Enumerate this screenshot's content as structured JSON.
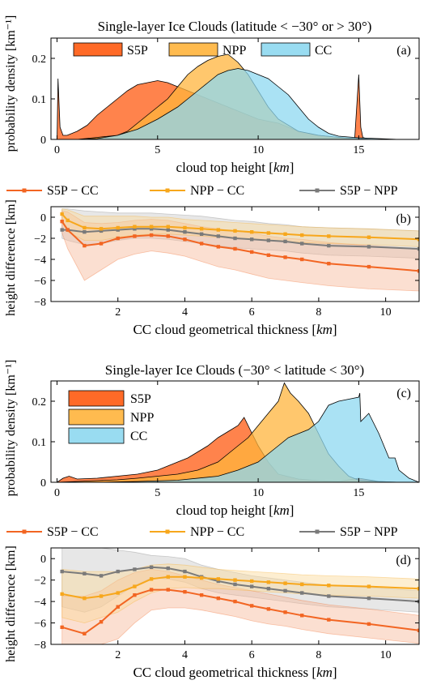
{
  "figure": {
    "ylabel_a": "probability density [km⁻¹]",
    "ylabel_b": "height difference [km]",
    "ylabel_c": "probability density [km⁻¹]",
    "ylabel_d": "height difference [km]"
  },
  "colors": {
    "S5P": "#ff5a10",
    "NPP": "#ffb43c",
    "CC": "#8ed8f0",
    "diff_s5p_cc": "#f26522",
    "diff_npp_cc": "#f7a71c",
    "diff_s5p_npp": "#7a7a7a"
  },
  "chart_data": [
    {
      "id": "a",
      "type": "area",
      "panel_label": "(a)",
      "title": "Single-layer Ice Clouds (latitude < −30° or > 30°)",
      "xlabel": "cloud top height [km]",
      "ylabel": "probability density [km⁻¹]",
      "xlim": [
        -0.3,
        18
      ],
      "ylim": [
        0,
        0.25
      ],
      "xticks": [
        0,
        5,
        10,
        15
      ],
      "yticks": [
        0,
        0.1,
        0.2
      ],
      "legend": "top",
      "grid": false,
      "series": [
        {
          "name": "S5P",
          "x": [
            0,
            0.05,
            0.15,
            0.3,
            0.5,
            1,
            1.5,
            2,
            2.5,
            3,
            3.5,
            4,
            4.5,
            5,
            5.5,
            6,
            6.5,
            7,
            7.5,
            8,
            8.5,
            9,
            9.5,
            10,
            10.5,
            11,
            11.5,
            12,
            12.5,
            13,
            14,
            14.8,
            15,
            15.1,
            15.2,
            15.5,
            16,
            18
          ],
          "y": [
            0,
            0.15,
            0.03,
            0.01,
            0.01,
            0.02,
            0.035,
            0.06,
            0.08,
            0.1,
            0.12,
            0.135,
            0.14,
            0.145,
            0.14,
            0.13,
            0.12,
            0.11,
            0.1,
            0.09,
            0.08,
            0.07,
            0.06,
            0.05,
            0.045,
            0.04,
            0.03,
            0.02,
            0.015,
            0.01,
            0.005,
            0.002,
            0.16,
            0.03,
            0.005,
            0,
            0,
            0
          ]
        },
        {
          "name": "NPP",
          "x": [
            0,
            0.5,
            1,
            2,
            3,
            3.5,
            4,
            4.5,
            5,
            5.5,
            6,
            6.5,
            7,
            7.5,
            8,
            8.5,
            9,
            9.5,
            10,
            10.5,
            11,
            12,
            13,
            14,
            15,
            16,
            18
          ],
          "y": [
            0,
            0,
            0,
            0.005,
            0.01,
            0.02,
            0.04,
            0.06,
            0.08,
            0.1,
            0.13,
            0.16,
            0.18,
            0.195,
            0.205,
            0.21,
            0.19,
            0.16,
            0.12,
            0.08,
            0.05,
            0.02,
            0.01,
            0.005,
            0.002,
            0,
            0
          ]
        },
        {
          "name": "CC",
          "x": [
            0,
            0.5,
            1,
            2,
            3,
            4,
            5,
            6,
            6.5,
            7,
            7.5,
            8,
            8.5,
            9,
            9.5,
            10,
            10.5,
            11,
            11.5,
            12,
            12.5,
            13,
            13.5,
            14,
            15,
            16,
            17,
            18
          ],
          "y": [
            0,
            0,
            0,
            0.002,
            0.01,
            0.025,
            0.05,
            0.08,
            0.1,
            0.12,
            0.14,
            0.16,
            0.17,
            0.175,
            0.17,
            0.16,
            0.15,
            0.13,
            0.11,
            0.08,
            0.05,
            0.03,
            0.015,
            0.008,
            0.004,
            0.002,
            0,
            0
          ]
        }
      ]
    },
    {
      "id": "b",
      "type": "line",
      "panel_label": "(b)",
      "xlabel": "CC cloud geometrical thickness [km]",
      "ylabel": "height difference [km]",
      "xlim": [
        0,
        11
      ],
      "ylim": [
        -8,
        1
      ],
      "xticks": [
        2,
        4,
        6,
        8,
        10
      ],
      "yticks": [
        0,
        -2,
        -4,
        -6,
        -8
      ],
      "legend": "top",
      "grid": false,
      "x": [
        0.33,
        0.5,
        1,
        1.5,
        2,
        2.5,
        3,
        3.5,
        4,
        4.5,
        5,
        5.5,
        6,
        6.5,
        7,
        7.5,
        8.3,
        9.5,
        11
      ],
      "series": [
        {
          "name": "S5P − CC",
          "values": [
            -0.4,
            -1.2,
            -2.7,
            -2.5,
            -2.0,
            -1.8,
            -1.7,
            -1.8,
            -2.1,
            -2.5,
            -2.8,
            -3.0,
            -3.3,
            -3.6,
            -3.8,
            -4.0,
            -4.4,
            -4.7,
            -5.1
          ],
          "lower": [
            -1.5,
            -3.0,
            -6.0,
            -5.0,
            -4.0,
            -3.5,
            -3.2,
            -3.4,
            -3.7,
            -4.2,
            -4.7,
            -5.0,
            -5.4,
            -5.8,
            -6.0,
            -6.2,
            -6.5,
            -6.8,
            -7.0
          ],
          "upper": [
            0.6,
            0.5,
            -0.5,
            -0.6,
            -0.5,
            -0.3,
            -0.2,
            -0.3,
            -0.6,
            -0.9,
            -1.1,
            -1.3,
            -1.5,
            -1.8,
            -2.0,
            -2.1,
            -2.4,
            -2.7,
            -3.0
          ]
        },
        {
          "name": "NPP − CC",
          "values": [
            0.3,
            -0.3,
            -1.0,
            -1.1,
            -1.0,
            -0.9,
            -0.9,
            -0.9,
            -1.0,
            -1.1,
            -1.2,
            -1.3,
            -1.4,
            -1.5,
            -1.6,
            -1.7,
            -1.8,
            -1.9,
            -2.1
          ],
          "lower": [
            -0.5,
            -1.4,
            -2.2,
            -2.2,
            -1.9,
            -1.7,
            -1.6,
            -1.6,
            -1.7,
            -1.8,
            -1.9,
            -2.0,
            -2.1,
            -2.2,
            -2.3,
            -2.4,
            -2.5,
            -2.6,
            -2.8
          ],
          "upper": [
            0.8,
            0.7,
            0.1,
            0.1,
            0.1,
            0.1,
            0.0,
            0.0,
            -0.2,
            -0.3,
            -0.4,
            -0.5,
            -0.6,
            -0.7,
            -0.8,
            -0.9,
            -1.0,
            -1.1,
            -1.3
          ]
        },
        {
          "name": "S5P − NPP",
          "values": [
            -1.2,
            -1.2,
            -1.4,
            -1.3,
            -1.2,
            -1.1,
            -1.1,
            -1.2,
            -1.4,
            -1.6,
            -1.8,
            -2.0,
            -2.1,
            -2.2,
            -2.3,
            -2.5,
            -2.7,
            -2.8,
            -3.0
          ],
          "lower": [
            -2.0,
            -2.2,
            -2.6,
            -2.5,
            -2.2,
            -2.0,
            -2.0,
            -2.1,
            -2.3,
            -2.5,
            -2.7,
            -2.9,
            -3.0,
            -3.1,
            -3.2,
            -3.4,
            -3.6,
            -3.7,
            -3.9
          ],
          "upper": [
            0.8,
            0.8,
            0.6,
            0.5,
            0.4,
            0.4,
            0.4,
            0.3,
            0.2,
            0.1,
            -0.1,
            -0.3,
            -0.4,
            -0.6,
            -0.7,
            -0.9,
            -1.0,
            -1.1,
            -1.3
          ]
        }
      ]
    },
    {
      "id": "c",
      "type": "area",
      "panel_label": "(c)",
      "title": "Single-layer Ice Clouds (−30° < latitude < 30°)",
      "xlabel": "cloud top height [km]",
      "ylabel": "probability density [km⁻¹]",
      "xlim": [
        -0.3,
        18
      ],
      "ylim": [
        0,
        0.25
      ],
      "xticks": [
        0,
        5,
        10,
        15
      ],
      "yticks": [
        0,
        0.1,
        0.2
      ],
      "legend": "top-left",
      "grid": false,
      "series": [
        {
          "name": "S5P",
          "x": [
            0,
            0.3,
            0.6,
            1,
            2,
            3,
            4,
            5,
            5.5,
            6,
            6.5,
            7,
            7.5,
            8,
            8.5,
            9,
            9.3,
            9.6,
            10,
            10.5,
            11,
            12,
            13,
            14,
            15,
            16,
            17,
            18
          ],
          "y": [
            0,
            0.01,
            0.015,
            0.008,
            0.01,
            0.015,
            0.02,
            0.03,
            0.04,
            0.05,
            0.06,
            0.075,
            0.09,
            0.11,
            0.125,
            0.14,
            0.16,
            0.13,
            0.09,
            0.05,
            0.02,
            0.008,
            0.004,
            0.002,
            0.01,
            0.002,
            0,
            0
          ]
        },
        {
          "name": "NPP",
          "x": [
            0,
            1,
            2,
            3,
            4,
            5,
            6,
            7,
            7.5,
            8,
            8.5,
            9,
            9.5,
            10,
            10.5,
            11,
            11.3,
            11.6,
            12,
            12.5,
            13,
            13.5,
            14,
            14.5,
            15,
            16,
            17,
            18
          ],
          "y": [
            0,
            0.002,
            0.004,
            0.006,
            0.01,
            0.015,
            0.02,
            0.03,
            0.04,
            0.05,
            0.07,
            0.09,
            0.11,
            0.14,
            0.17,
            0.2,
            0.245,
            0.22,
            0.2,
            0.17,
            0.12,
            0.07,
            0.04,
            0.015,
            0.005,
            0.002,
            0,
            0
          ]
        },
        {
          "name": "CC",
          "x": [
            0,
            2,
            4,
            6,
            8,
            9,
            10,
            10.5,
            11,
            11.5,
            12,
            12.5,
            13,
            13.5,
            14,
            14.5,
            15,
            15.05,
            15.1,
            15.5,
            16,
            16.5,
            16.8,
            17,
            17.5,
            18
          ],
          "y": [
            0,
            0,
            0.002,
            0.005,
            0.015,
            0.03,
            0.05,
            0.07,
            0.09,
            0.11,
            0.12,
            0.13,
            0.15,
            0.19,
            0.2,
            0.205,
            0.21,
            0.22,
            0.15,
            0.17,
            0.12,
            0.06,
            0.06,
            0.03,
            0.01,
            0
          ]
        }
      ]
    },
    {
      "id": "d",
      "type": "line",
      "panel_label": "(d)",
      "xlabel": "CC cloud geometrical thickness [km]",
      "ylabel": "height difference [km]",
      "xlim": [
        0,
        11
      ],
      "ylim": [
        -8,
        1
      ],
      "xticks": [
        2,
        4,
        6,
        8,
        10
      ],
      "yticks": [
        0,
        -2,
        -4,
        -6,
        -8
      ],
      "legend": "top",
      "grid": false,
      "x": [
        0.33,
        1,
        1.5,
        2,
        2.5,
        3,
        3.5,
        4,
        4.5,
        5,
        5.5,
        6,
        6.5,
        7,
        7.5,
        8.3,
        9.5,
        11
      ],
      "series": [
        {
          "name": "S5P − CC",
          "values": [
            -6.4,
            -7.0,
            -5.9,
            -4.5,
            -3.4,
            -2.9,
            -2.9,
            -3.1,
            -3.4,
            -3.7,
            -4.0,
            -4.4,
            -4.7,
            -5.0,
            -5.3,
            -5.7,
            -6.1,
            -6.7
          ],
          "lower": [
            -8,
            -8,
            -8,
            -7.5,
            -6.0,
            -4.8,
            -4.6,
            -4.6,
            -4.8,
            -5.1,
            -5.4,
            -5.8,
            -6.1,
            -6.3,
            -6.6,
            -7.0,
            -7.4,
            -7.9
          ],
          "upper": [
            -3.5,
            -3.5,
            -3.0,
            -2.0,
            -1.3,
            -1.0,
            -1.2,
            -1.6,
            -2.0,
            -2.4,
            -2.7,
            -3.0,
            -3.3,
            -3.6,
            -3.9,
            -4.3,
            -4.7,
            -5.3
          ]
        },
        {
          "name": "NPP − CC",
          "values": [
            -3.3,
            -3.7,
            -3.5,
            -3.2,
            -2.6,
            -1.9,
            -1.7,
            -1.7,
            -1.8,
            -1.9,
            -2.0,
            -2.1,
            -2.2,
            -2.3,
            -2.4,
            -2.5,
            -2.6,
            -2.8
          ],
          "lower": [
            -5.5,
            -6.0,
            -5.5,
            -5.0,
            -4.0,
            -3.2,
            -2.8,
            -2.7,
            -2.8,
            -2.8,
            -2.9,
            -3.0,
            -3.1,
            -3.2,
            -3.3,
            -3.4,
            -3.5,
            -3.7
          ],
          "upper": [
            -1.0,
            -1.2,
            -1.2,
            -1.2,
            -1.0,
            -0.6,
            -0.5,
            -0.6,
            -0.8,
            -1.0,
            -1.1,
            -1.2,
            -1.3,
            -1.4,
            -1.5,
            -1.6,
            -1.7,
            -1.9
          ]
        },
        {
          "name": "S5P − NPP",
          "values": [
            -1.2,
            -1.4,
            -1.6,
            -1.2,
            -1.0,
            -0.8,
            -0.9,
            -1.2,
            -1.7,
            -2.1,
            -2.4,
            -2.6,
            -2.8,
            -3.0,
            -3.2,
            -3.5,
            -3.7,
            -4.0
          ],
          "lower": [
            -4.5,
            -5.0,
            -4.5,
            -3.5,
            -2.5,
            -1.8,
            -1.9,
            -2.2,
            -2.8,
            -3.2,
            -3.4,
            -3.6,
            -3.8,
            -4.0,
            -4.2,
            -4.5,
            -4.7,
            -5.0
          ],
          "upper": [
            1,
            1,
            1,
            0.8,
            0.6,
            0.3,
            0.2,
            0.0,
            -0.6,
            -1.0,
            -1.3,
            -1.6,
            -1.8,
            -2.0,
            -2.2,
            -2.5,
            -2.7,
            -3.0
          ]
        }
      ]
    }
  ]
}
